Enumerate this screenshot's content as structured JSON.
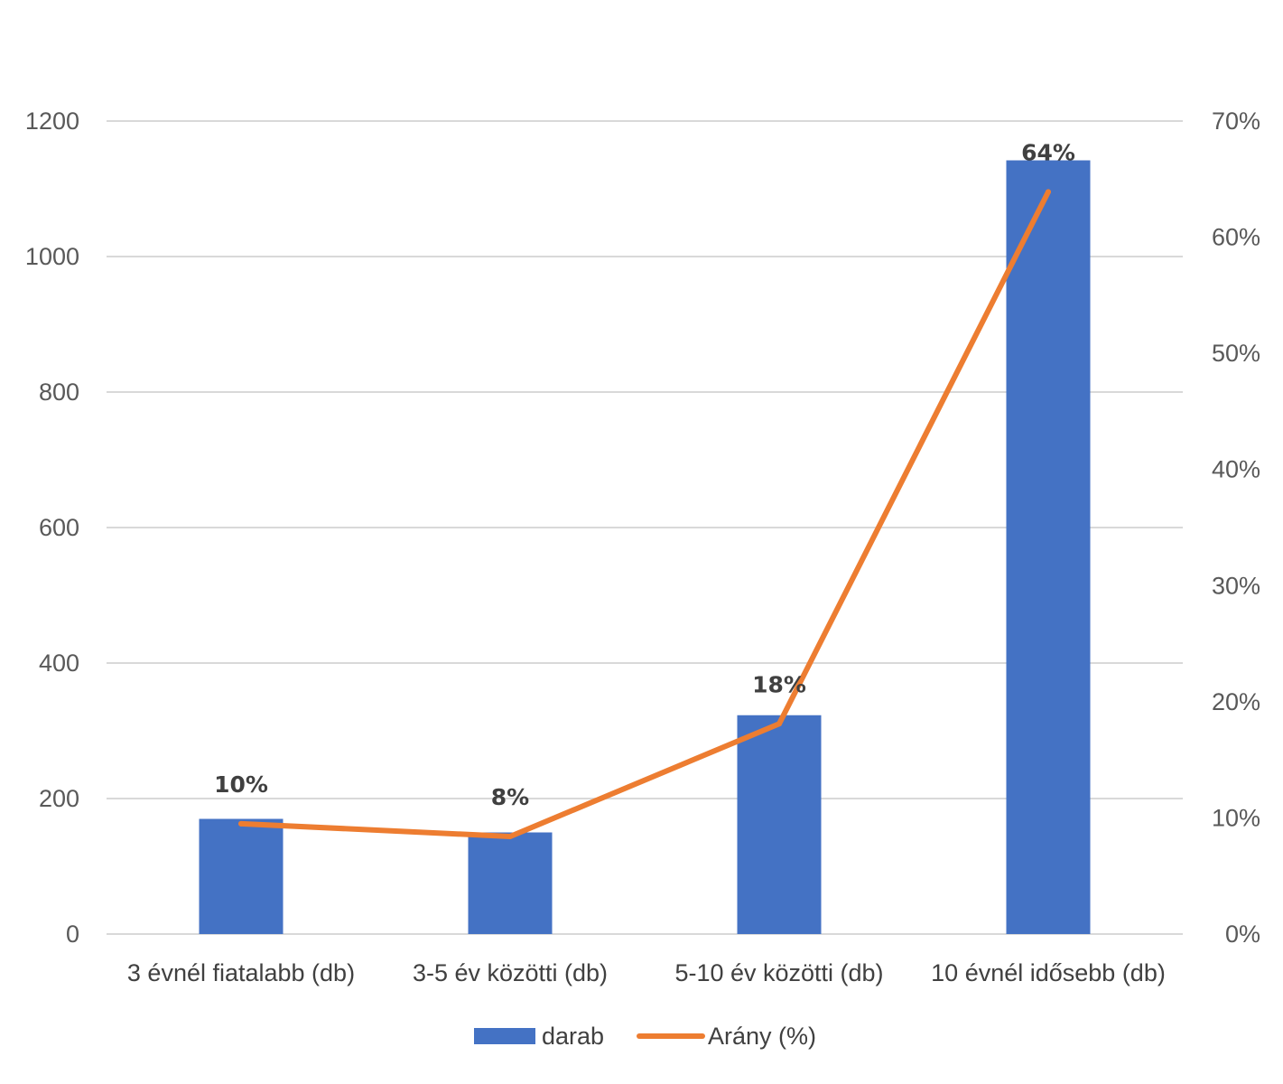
{
  "chart_data": {
    "type": "bar",
    "categories": [
      "3 évnél fiatalabb (db)",
      "3-5 év közötti (db)",
      "5-10 év közötti (db)",
      "10 évnél idősebb (db)"
    ],
    "series": [
      {
        "name": "darab",
        "type": "bar",
        "axis": "left",
        "color": "#4472c4",
        "values": [
          170,
          150,
          323,
          1142
        ]
      },
      {
        "name": "Arány (%)",
        "type": "line",
        "axis": "right",
        "color": "#ed7d31",
        "values": [
          9.5,
          8.4,
          18.1,
          63.9
        ]
      }
    ],
    "data_labels": [
      "10%",
      "8%",
      "18%",
      "64%"
    ],
    "y_left": {
      "min": 0,
      "max": 1200,
      "ticks": [
        "0",
        "200",
        "400",
        "600",
        "800",
        "1000",
        "1200"
      ]
    },
    "y_right": {
      "min": 0,
      "max": 70,
      "ticks": [
        "0%",
        "10%",
        "20%",
        "30%",
        "40%",
        "50%",
        "60%",
        "70%"
      ]
    },
    "title": "",
    "xlabel": "",
    "ylabel": "",
    "grid": true,
    "legend_position": "bottom"
  }
}
